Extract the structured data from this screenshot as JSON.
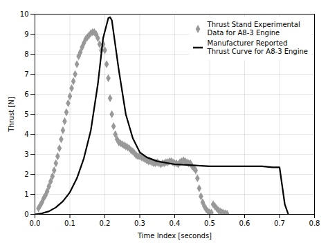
{
  "chart_data": {
    "type": "line",
    "title": "",
    "xlabel": "Time Index [seconds]",
    "ylabel": "Thrust [N]",
    "xlim": [
      0.0,
      0.8
    ],
    "ylim": [
      0,
      10
    ],
    "xticks": [
      {
        "value": 0.0,
        "label": "0.0"
      },
      0.1,
      0.2,
      0.3,
      0.4,
      0.5,
      0.6,
      0.7,
      0.8
    ],
    "yticks": [
      0,
      1,
      2,
      3,
      4,
      5,
      6,
      7,
      8,
      9,
      10
    ],
    "grid": true,
    "legend": "upper right",
    "series": [
      {
        "name": "Thrust Stand Experimental\nData for A8-3 Engine",
        "type": "scatter",
        "marker": "diamond",
        "color": "#999999",
        "x": [
          0.01,
          0.015,
          0.02,
          0.025,
          0.03,
          0.035,
          0.04,
          0.045,
          0.05,
          0.055,
          0.06,
          0.065,
          0.07,
          0.075,
          0.08,
          0.085,
          0.09,
          0.095,
          0.1,
          0.105,
          0.11,
          0.115,
          0.12,
          0.125,
          0.13,
          0.135,
          0.14,
          0.145,
          0.15,
          0.155,
          0.16,
          0.165,
          0.17,
          0.175,
          0.18,
          0.185,
          0.19,
          0.195,
          0.2,
          0.205,
          0.21,
          0.215,
          0.22,
          0.225,
          0.23,
          0.235,
          0.24,
          0.245,
          0.25,
          0.255,
          0.26,
          0.265,
          0.27,
          0.275,
          0.28,
          0.285,
          0.29,
          0.295,
          0.3,
          0.305,
          0.31,
          0.315,
          0.32,
          0.325,
          0.33,
          0.335,
          0.34,
          0.345,
          0.35,
          0.355,
          0.36,
          0.365,
          0.37,
          0.375,
          0.38,
          0.385,
          0.39,
          0.395,
          0.4,
          0.405,
          0.41,
          0.415,
          0.42,
          0.425,
          0.43,
          0.435,
          0.44,
          0.445,
          0.45,
          0.455,
          0.46,
          0.465,
          0.47,
          0.475,
          0.48,
          0.485,
          0.49,
          0.495,
          0.5,
          0.505,
          0.51,
          0.515,
          0.52,
          0.525,
          0.53,
          0.535,
          0.54,
          0.545,
          0.55
        ],
        "values": [
          0.3,
          0.45,
          0.6,
          0.8,
          0.95,
          1.15,
          1.4,
          1.65,
          1.9,
          2.2,
          2.55,
          2.9,
          3.3,
          3.75,
          4.2,
          4.65,
          5.1,
          5.55,
          5.9,
          6.3,
          6.65,
          7.0,
          7.5,
          7.9,
          8.1,
          8.35,
          8.55,
          8.75,
          8.85,
          8.95,
          9.05,
          9.1,
          9.1,
          9.0,
          8.8,
          8.5,
          8.2,
          8.5,
          8.2,
          7.5,
          6.8,
          5.8,
          5.0,
          4.4,
          4.0,
          3.75,
          3.6,
          3.55,
          3.5,
          3.45,
          3.4,
          3.35,
          3.3,
          3.2,
          3.15,
          3.05,
          2.95,
          2.9,
          2.9,
          2.85,
          2.8,
          2.75,
          2.7,
          2.65,
          2.65,
          2.6,
          2.55,
          2.55,
          2.6,
          2.55,
          2.5,
          2.55,
          2.55,
          2.6,
          2.6,
          2.65,
          2.65,
          2.6,
          2.55,
          2.55,
          2.5,
          2.6,
          2.65,
          2.7,
          2.65,
          2.6,
          2.55,
          2.55,
          2.4,
          2.3,
          2.2,
          1.8,
          1.3,
          0.9,
          0.6,
          0.4,
          0.25,
          0.15,
          0.1,
          0.08,
          0.5,
          0.4,
          0.3,
          0.2,
          0.15,
          0.1,
          0.08,
          0.05,
          0.03
        ]
      },
      {
        "name": "Manufacturer Reported\nThrust Curve for A8-3 Engine",
        "type": "line",
        "line_style": "solid",
        "color": "#000000",
        "x": [
          0.0,
          0.02,
          0.04,
          0.06,
          0.08,
          0.1,
          0.12,
          0.14,
          0.16,
          0.18,
          0.195,
          0.21,
          0.215,
          0.22,
          0.24,
          0.26,
          0.28,
          0.3,
          0.32,
          0.35,
          0.4,
          0.45,
          0.5,
          0.55,
          0.6,
          0.63,
          0.65,
          0.68,
          0.7,
          0.715,
          0.725
        ],
        "values": [
          0.0,
          0.05,
          0.15,
          0.35,
          0.65,
          1.1,
          1.8,
          2.8,
          4.2,
          6.5,
          8.8,
          9.8,
          9.85,
          9.7,
          7.2,
          5.0,
          3.8,
          3.1,
          2.85,
          2.65,
          2.5,
          2.45,
          2.4,
          2.4,
          2.4,
          2.4,
          2.4,
          2.35,
          2.35,
          0.5,
          0.0
        ]
      }
    ]
  }
}
